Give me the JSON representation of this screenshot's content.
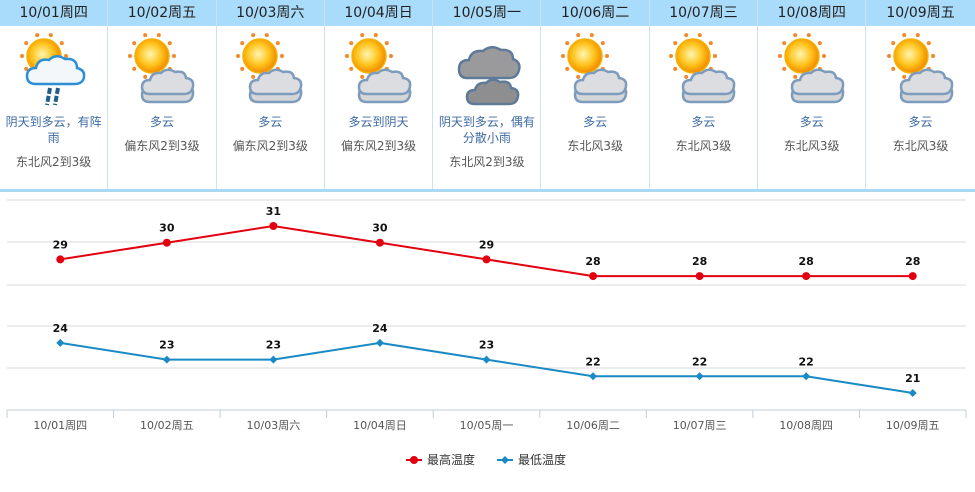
{
  "forecast": [
    {
      "date": "10/01周四",
      "icon": "thunder-shower-icon",
      "condition": "阴天到多云，有阵雨",
      "wind": "东北风2到3级"
    },
    {
      "date": "10/02周五",
      "icon": "partly-cloudy-icon",
      "condition": "多云",
      "wind": "偏东风2到3级"
    },
    {
      "date": "10/03周六",
      "icon": "partly-cloudy-icon",
      "condition": "多云",
      "wind": "偏东风2到3级"
    },
    {
      "date": "10/04周日",
      "icon": "partly-cloudy-icon",
      "condition": "多云到阴天",
      "wind": "偏东风2到3级"
    },
    {
      "date": "10/05周一",
      "icon": "overcast-icon",
      "condition": "阴天到多云，偶有分散小雨",
      "wind": "东北风2到3级"
    },
    {
      "date": "10/06周二",
      "icon": "partly-cloudy-icon",
      "condition": "多云",
      "wind": "东北风3级"
    },
    {
      "date": "10/07周三",
      "icon": "partly-cloudy-icon",
      "condition": "多云",
      "wind": "东北风3级"
    },
    {
      "date": "10/08周四",
      "icon": "partly-cloudy-icon",
      "condition": "多云",
      "wind": "东北风3级"
    },
    {
      "date": "10/09周五",
      "icon": "partly-cloudy-icon",
      "condition": "多云",
      "wind": "东北风3级"
    }
  ],
  "colors": {
    "high": "#e3000f",
    "low": "#1a8ac4",
    "header_bg": "#a9dbfb"
  },
  "chart_data": {
    "type": "line",
    "title": "",
    "categories": [
      "10/01周四",
      "10/02周五",
      "10/03周六",
      "10/04周日",
      "10/05周一",
      "10/06周二",
      "10/07周三",
      "10/08周四",
      "10/09周五"
    ],
    "series": [
      {
        "name": "最高温度",
        "values": [
          29,
          30,
          31,
          30,
          29,
          28,
          28,
          28,
          28
        ],
        "color": "#e3000f",
        "marker": "circle"
      },
      {
        "name": "最低温度",
        "values": [
          24,
          23,
          23,
          24,
          23,
          22,
          22,
          22,
          21
        ],
        "color": "#1a8ac4",
        "marker": "diamond"
      }
    ],
    "xlabel": "",
    "ylabel": "",
    "grid": true,
    "data_labels": true,
    "legend_position": "bottom"
  }
}
